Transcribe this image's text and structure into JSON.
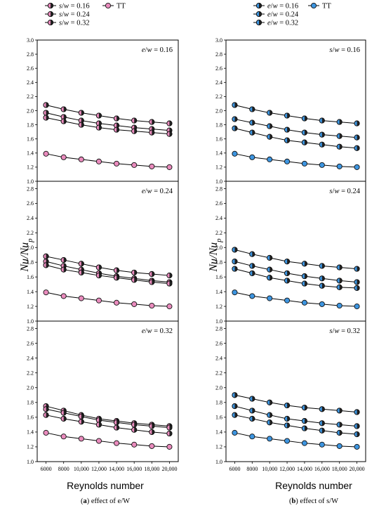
{
  "colors": {
    "pink": "#e98bbd",
    "blue": "#3d95e0",
    "dark": "#222222"
  },
  "chart_data": [
    {
      "type": "line",
      "caption_letter": "a",
      "caption_text": "effect of e/W",
      "xlabel": "Reynolds number",
      "ylabel": "Nu/Nu",
      "ylabel_sub": "p",
      "x": [
        6000,
        8000,
        10000,
        12000,
        14000,
        16000,
        18000,
        20000
      ],
      "x_tick_labels": [
        "6000",
        "8000",
        "10,000",
        "12,000",
        "14,000",
        "16,000",
        "18,000",
        "20,000"
      ],
      "legend": [
        {
          "label": "s/w = 0.16",
          "style": "half"
        },
        {
          "label": "s/w = 0.24",
          "style": "half"
        },
        {
          "label": "s/w = 0.32",
          "style": "half"
        },
        {
          "label": "TT",
          "style": "tt"
        }
      ],
      "panels": [
        {
          "annotation": "e/w = 0.16",
          "ylim": [
            1.0,
            3.0
          ],
          "y_tick_labels": [
            "1.0",
            "1.2",
            "1.4",
            "1.6",
            "1.8",
            "2.0",
            "2.2",
            "2.4",
            "2.6",
            "2.8",
            "3.0"
          ],
          "series": [
            {
              "name": "s/w = 0.16",
              "values": [
                2.08,
                2.02,
                1.97,
                1.93,
                1.89,
                1.86,
                1.84,
                1.82
              ]
            },
            {
              "name": "s/w = 0.24",
              "values": [
                1.97,
                1.91,
                1.86,
                1.82,
                1.79,
                1.76,
                1.74,
                1.72
              ]
            },
            {
              "name": "s/w = 0.32",
              "values": [
                1.9,
                1.85,
                1.8,
                1.76,
                1.73,
                1.71,
                1.69,
                1.67
              ]
            },
            {
              "name": "TT",
              "values": [
                1.39,
                1.34,
                1.31,
                1.28,
                1.25,
                1.23,
                1.21,
                1.2
              ]
            }
          ]
        },
        {
          "annotation": "e/w = 0.24",
          "ylim": [
            1.0,
            2.9
          ],
          "y_tick_labels": [
            "1.0",
            "1.2",
            "1.4",
            "1.6",
            "1.8",
            "2.0",
            "2.2",
            "2.4",
            "2.6",
            "2.8"
          ],
          "series": [
            {
              "name": "s/w = 0.16",
              "values": [
                1.88,
                1.83,
                1.78,
                1.73,
                1.69,
                1.66,
                1.64,
                1.62
              ]
            },
            {
              "name": "s/w = 0.24",
              "values": [
                1.81,
                1.75,
                1.7,
                1.65,
                1.61,
                1.58,
                1.55,
                1.53
              ]
            },
            {
              "name": "s/w = 0.32",
              "values": [
                1.76,
                1.7,
                1.66,
                1.62,
                1.59,
                1.56,
                1.53,
                1.51
              ]
            },
            {
              "name": "TT",
              "values": [
                1.39,
                1.34,
                1.31,
                1.28,
                1.25,
                1.23,
                1.21,
                1.2
              ]
            }
          ]
        },
        {
          "annotation": "e/w = 0.32",
          "ylim": [
            1.0,
            2.9
          ],
          "y_tick_labels": [
            "1.0",
            "1.2",
            "1.4",
            "1.6",
            "1.8",
            "2.0",
            "2.2",
            "2.4",
            "2.6",
            "2.8"
          ],
          "series": [
            {
              "name": "s/w = 0.16",
              "values": [
                1.75,
                1.69,
                1.63,
                1.58,
                1.55,
                1.52,
                1.5,
                1.48
              ]
            },
            {
              "name": "s/w = 0.24",
              "values": [
                1.71,
                1.66,
                1.61,
                1.56,
                1.53,
                1.5,
                1.48,
                1.46
              ]
            },
            {
              "name": "s/w = 0.32",
              "values": [
                1.63,
                1.58,
                1.54,
                1.5,
                1.46,
                1.43,
                1.4,
                1.38
              ]
            },
            {
              "name": "TT",
              "values": [
                1.39,
                1.34,
                1.31,
                1.28,
                1.25,
                1.23,
                1.21,
                1.2
              ]
            }
          ]
        }
      ]
    },
    {
      "type": "line",
      "caption_letter": "b",
      "caption_text": "effect of s/W",
      "xlabel": "Reynolds number",
      "ylabel": "Nu/Nu",
      "ylabel_sub": "p",
      "x": [
        6000,
        8000,
        10000,
        12000,
        14000,
        16000,
        18000,
        20000
      ],
      "x_tick_labels": [
        "6000",
        "8000",
        "10,000",
        "12,000",
        "14,000",
        "16,000",
        "18,000",
        "20,000"
      ],
      "legend": [
        {
          "label": "e/w = 0.16",
          "style": "half"
        },
        {
          "label": "e/w = 0.24",
          "style": "half"
        },
        {
          "label": "e/w = 0.32",
          "style": "half"
        },
        {
          "label": "TT",
          "style": "tt"
        }
      ],
      "panels": [
        {
          "annotation": "s/w = 0.16",
          "ylim": [
            1.0,
            3.0
          ],
          "y_tick_labels": [
            "1.0",
            "1.2",
            "1.4",
            "1.6",
            "1.8",
            "2.0",
            "2.2",
            "2.4",
            "2.6",
            "2.8",
            "3.0"
          ],
          "series": [
            {
              "name": "e/w = 0.16",
              "values": [
                2.08,
                2.02,
                1.97,
                1.93,
                1.89,
                1.86,
                1.84,
                1.82
              ]
            },
            {
              "name": "e/w = 0.24",
              "values": [
                1.88,
                1.83,
                1.78,
                1.73,
                1.69,
                1.66,
                1.64,
                1.62
              ]
            },
            {
              "name": "e/w = 0.32",
              "values": [
                1.75,
                1.69,
                1.63,
                1.58,
                1.55,
                1.52,
                1.49,
                1.47
              ]
            },
            {
              "name": "TT",
              "values": [
                1.39,
                1.34,
                1.31,
                1.28,
                1.25,
                1.23,
                1.21,
                1.2
              ]
            }
          ]
        },
        {
          "annotation": "s/w = 0.24",
          "ylim": [
            1.0,
            2.9
          ],
          "y_tick_labels": [
            "1.0",
            "1.2",
            "1.4",
            "1.6",
            "1.8",
            "2.0",
            "2.2",
            "2.4",
            "2.6",
            "2.8"
          ],
          "series": [
            {
              "name": "e/w = 0.16",
              "values": [
                1.97,
                1.91,
                1.86,
                1.81,
                1.78,
                1.75,
                1.73,
                1.71
              ]
            },
            {
              "name": "e/w = 0.24",
              "values": [
                1.81,
                1.75,
                1.7,
                1.65,
                1.61,
                1.58,
                1.55,
                1.53
              ]
            },
            {
              "name": "e/w = 0.32",
              "values": [
                1.71,
                1.65,
                1.59,
                1.55,
                1.51,
                1.48,
                1.46,
                1.45
              ]
            },
            {
              "name": "TT",
              "values": [
                1.39,
                1.34,
                1.31,
                1.28,
                1.25,
                1.23,
                1.21,
                1.2
              ]
            }
          ]
        },
        {
          "annotation": "s/w = 0.32",
          "ylim": [
            1.0,
            2.9
          ],
          "y_tick_labels": [
            "1.0",
            "1.2",
            "1.4",
            "1.6",
            "1.8",
            "2.0",
            "2.2",
            "2.4",
            "2.6",
            "2.8"
          ],
          "series": [
            {
              "name": "e/w = 0.16",
              "values": [
                1.9,
                1.85,
                1.8,
                1.76,
                1.73,
                1.71,
                1.69,
                1.67
              ]
            },
            {
              "name": "e/w = 0.24",
              "values": [
                1.75,
                1.69,
                1.63,
                1.58,
                1.55,
                1.52,
                1.5,
                1.48
              ]
            },
            {
              "name": "e/w = 0.32",
              "values": [
                1.63,
                1.58,
                1.53,
                1.49,
                1.45,
                1.42,
                1.39,
                1.37
              ]
            },
            {
              "name": "TT",
              "values": [
                1.39,
                1.34,
                1.31,
                1.28,
                1.25,
                1.23,
                1.21,
                1.2
              ]
            }
          ]
        }
      ]
    }
  ]
}
